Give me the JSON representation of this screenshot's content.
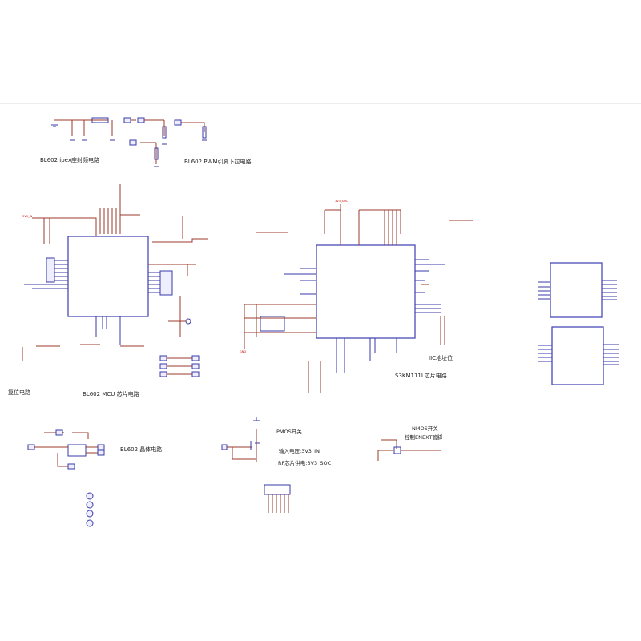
{
  "colors": {
    "wire": "#9b3a2a",
    "component": "#3a3aa8",
    "net_label": "#cc0000"
  },
  "sections": {
    "ipex_rf": "BL602 ipex座射频电路",
    "pwm_pulldown": "BL602 PWM引脚下拉电路",
    "reset": "复位电路",
    "mcu": "BL602 MCU 芯片电路",
    "radar": "S3KM111L芯片电路",
    "iic_addr": "IIC地址位",
    "crystal": "BL602 晶体电路",
    "pmos": "PMOS开关",
    "input_voltage": "输入电压:3V3_IN",
    "rf_supply": "RF芯片供电:3V3_SOC",
    "nmos": "NMOS开关",
    "enext": "控制ENEXT管脚"
  },
  "nets": {
    "vin": "3V3_IN",
    "vsoc": "3V3_SOC",
    "gnd": "GND"
  }
}
